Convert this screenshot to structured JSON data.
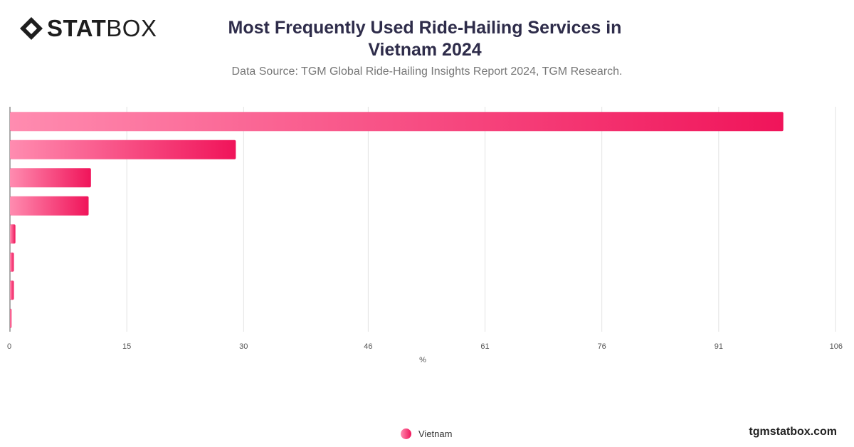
{
  "logo": {
    "bold": "STAT",
    "light": "BOX",
    "icon": "statbox-diamond-icon"
  },
  "title": "Most Frequently Used Ride-Hailing Services in Vietnam 2024",
  "subtitle": "Data Source: TGM Global Ride-Hailing Insights Report 2024, TGM Research.",
  "footer": "tgmstatbox.com",
  "colors": {
    "bar_start": "#ff8cb0",
    "bar_end": "#f0145a",
    "grid": "#e2e2e2",
    "axis": "#555555"
  },
  "chart_data": {
    "type": "bar",
    "orientation": "horizontal",
    "title": "Most Frequently Used Ride-Hailing Services in Vietnam 2024",
    "subtitle": "Data Source: TGM Global Ride-Hailing Insights Report 2024, TGM Research.",
    "xlabel": "%",
    "ylabel": "",
    "xlim": [
      0,
      106
    ],
    "xticks": [
      0,
      15,
      30,
      46,
      61,
      76,
      91,
      106
    ],
    "categories": [
      "",
      "",
      "",
      "",
      "",
      "",
      "",
      ""
    ],
    "series": [
      {
        "name": "Vietnam",
        "values": [
          99.3,
          29.0,
          10.4,
          10.1,
          0.7,
          0.5,
          0.5,
          0.2
        ]
      }
    ],
    "grid": true,
    "legend": "bottom-center"
  }
}
